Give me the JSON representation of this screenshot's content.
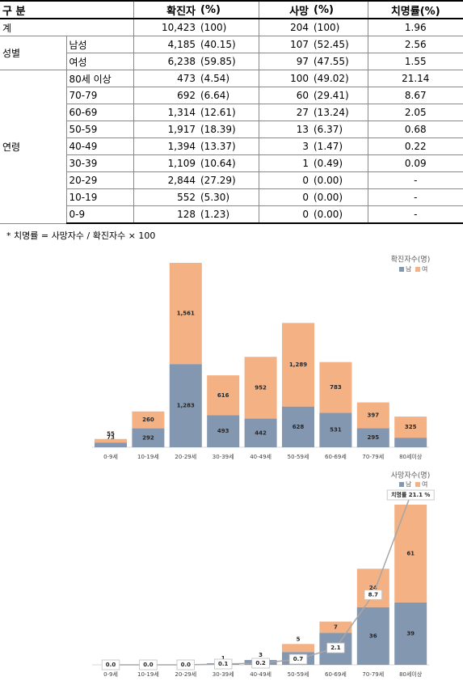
{
  "table": {
    "header": [
      "구 분",
      "확진자",
      "(%)",
      "사망",
      "(%)",
      "치명률(%)"
    ],
    "rows": [
      {
        "group": "계",
        "cells": [
          "10,423",
          "(100)",
          "204",
          "(100)",
          "1.96"
        ]
      },
      {
        "group": "성별",
        "label": "남성",
        "cells": [
          "4,185",
          "(40.15)",
          "107",
          "(52.45)",
          "2.56"
        ]
      },
      {
        "label": "여성",
        "cells": [
          "6,238",
          "(59.85)",
          "97",
          "(47.55)",
          "1.55"
        ]
      },
      {
        "group": "연령",
        "label": "80세 이상",
        "cells": [
          "473",
          "(4.54)",
          "100",
          "(49.02)",
          "21.14"
        ]
      },
      {
        "label": "70-79",
        "cells": [
          "692",
          "(6.64)",
          "60",
          "(29.41)",
          "8.67"
        ]
      },
      {
        "label": "60-69",
        "cells": [
          "1,314",
          "(12.61)",
          "27",
          "(13.24)",
          "2.05"
        ]
      },
      {
        "label": "50-59",
        "cells": [
          "1,917",
          "(18.39)",
          "13",
          "(6.37)",
          "0.68"
        ]
      },
      {
        "label": "40-49",
        "cells": [
          "1,394",
          "(13.37)",
          "3",
          "(1.47)",
          "0.22"
        ]
      },
      {
        "label": "30-39",
        "cells": [
          "1,109",
          "(10.64)",
          "1",
          "(0.49)",
          "0.09"
        ]
      },
      {
        "label": "20-29",
        "cells": [
          "2,844",
          "(27.29)",
          "0",
          "(0.00)",
          "-"
        ]
      },
      {
        "label": "10-19",
        "cells": [
          "552",
          "(5.30)",
          "0",
          "(0.00)",
          "-"
        ]
      },
      {
        "label": "0-9",
        "cells": [
          "128",
          "(1.23)",
          "0",
          "(0.00)",
          "-"
        ]
      }
    ]
  },
  "note": "* 치명률 = 사망자수 / 확진자수 × 100",
  "chart_data": [
    {
      "type": "bar",
      "stacked": true,
      "title": "확진자수(명)",
      "categories": [
        "0-9세",
        "10-19세",
        "20-29세",
        "30-39세",
        "40-49세",
        "50-59세",
        "60-69세",
        "70-79세",
        "80세이상"
      ],
      "series": [
        {
          "name": "남",
          "color": "#8497b0",
          "values": [
            73,
            292,
            1283,
            493,
            442,
            628,
            531,
            295,
            148
          ],
          "value_labels": [
            "73",
            "292",
            "1,283",
            "493",
            "442",
            "628",
            "531",
            "295",
            "148"
          ]
        },
        {
          "name": "여",
          "color": "#f4b183",
          "values": [
            55,
            260,
            1561,
            616,
            952,
            1289,
            783,
            397,
            325
          ],
          "value_labels": [
            "55",
            "260",
            "1,561",
            "616",
            "952",
            "1,289",
            "783",
            "397",
            "325"
          ]
        }
      ]
    },
    {
      "type": "bar",
      "stacked": true,
      "title": "사망자수(명)",
      "categories": [
        "0-9세",
        "10-19세",
        "20-29세",
        "30-39세",
        "40-49세",
        "50-59세",
        "60-69세",
        "70-79세",
        "80세이상"
      ],
      "series": [
        {
          "name": "남",
          "color": "#8497b0",
          "values": [
            0,
            0,
            0,
            1,
            3,
            8,
            20,
            36,
            39
          ],
          "value_labels": [
            null,
            null,
            null,
            "1",
            "3",
            "8",
            "20",
            "36",
            "39"
          ]
        },
        {
          "name": "여",
          "color": "#f4b183",
          "values": [
            0,
            0,
            0,
            0,
            0,
            5,
            7,
            24,
            61
          ],
          "value_labels": [
            null,
            null,
            null,
            null,
            null,
            "5",
            "7",
            "24",
            "61"
          ]
        },
        {
          "type": "line",
          "axis": "y2",
          "color": "#a6a6a6",
          "values": [
            0.0,
            0.0,
            0.0,
            0.1,
            0.2,
            0.7,
            2.1,
            8.7,
            21.1
          ],
          "value_labels": [
            "0.0",
            "0.0",
            "0.0",
            "0.1",
            "0.2",
            "0.7",
            "2.1",
            "8.7",
            "치명률 21.1 %"
          ]
        }
      ]
    }
  ]
}
